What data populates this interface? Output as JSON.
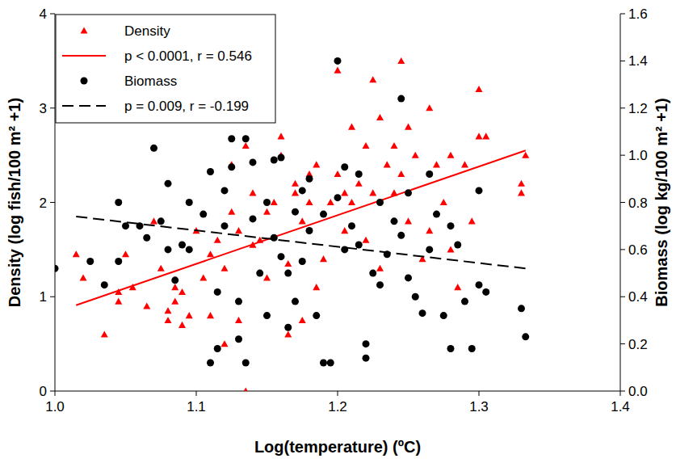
{
  "chart_data": {
    "type": "scatter",
    "x_label": "Log(temperature) (ºC)",
    "y_label": "Density (log fish/100 m² +1)",
    "y2_label": "Biomass (log kg/100 m² +1)",
    "xlim": [
      1.0,
      1.4
    ],
    "xticks": [
      {
        "value": 1.0,
        "label": "1.0"
      },
      1.1,
      1.2,
      1.3,
      {
        "value": 1.4,
        "label": "1.4"
      }
    ],
    "ylim": [
      0,
      4
    ],
    "yticks": [
      0,
      1,
      2,
      3,
      4
    ],
    "y2lim": [
      0,
      1.6
    ],
    "y2ticks": [
      {
        "value": 0,
        "label": "0.0"
      },
      0.2,
      0.4,
      0.6,
      0.8,
      {
        "value": 1.0,
        "label": "1.0"
      },
      1.2,
      1.4,
      1.6
    ],
    "legend": "upper left",
    "grid": false,
    "series": [
      {
        "name": "Density",
        "type": "scatter",
        "marker": "triangle",
        "color": "#ff0000",
        "x": [
          1.015,
          1.02,
          1.035,
          1.045,
          1.045,
          1.05,
          1.055,
          1.065,
          1.07,
          1.075,
          1.08,
          1.08,
          1.085,
          1.085,
          1.09,
          1.09,
          1.095,
          1.1,
          1.105,
          1.11,
          1.11,
          1.115,
          1.12,
          1.12,
          1.125,
          1.125,
          1.13,
          1.13,
          1.135,
          1.135,
          1.14,
          1.14,
          1.145,
          1.15,
          1.15,
          1.155,
          1.16,
          1.16,
          1.165,
          1.165,
          1.17,
          1.17,
          1.175,
          1.175,
          1.18,
          1.18,
          1.185,
          1.185,
          1.19,
          1.195,
          1.2,
          1.2,
          1.205,
          1.205,
          1.21,
          1.21,
          1.215,
          1.22,
          1.22,
          1.225,
          1.225,
          1.23,
          1.23,
          1.235,
          1.24,
          1.24,
          1.245,
          1.245,
          1.25,
          1.25,
          1.255,
          1.26,
          1.265,
          1.265,
          1.27,
          1.275,
          1.28,
          1.28,
          1.285,
          1.29,
          1.295,
          1.3,
          1.3,
          1.305,
          1.33,
          1.33,
          1.333
        ],
        "values": [
          1.45,
          1.2,
          0.6,
          0.95,
          1.05,
          1.45,
          1.1,
          0.9,
          1.8,
          1.3,
          0.85,
          0.75,
          0.95,
          1.1,
          1.05,
          0.7,
          0.8,
          1.7,
          1.2,
          1.45,
          0.8,
          1.6,
          1.3,
          0.5,
          1.9,
          2.4,
          1.7,
          0.75,
          2.6,
          0.0,
          1.55,
          2.1,
          1.6,
          1.2,
          1.9,
          2.0,
          2.7,
          2.5,
          0.6,
          1.35,
          2.1,
          2.2,
          0.75,
          1.8,
          2.0,
          2.3,
          1.1,
          2.4,
          1.4,
          2.0,
          3.4,
          2.3,
          1.7,
          2.1,
          2.8,
          2.0,
          2.2,
          2.6,
          1.6,
          3.3,
          2.1,
          2.9,
          1.3,
          2.4,
          2.1,
          2.6,
          3.5,
          2.3,
          1.8,
          2.8,
          2.5,
          1.4,
          3.0,
          1.7,
          2.4,
          2.0,
          2.5,
          1.5,
          1.1,
          2.4,
          1.8,
          3.2,
          2.7,
          2.7,
          2.1,
          2.2,
          2.5
        ]
      },
      {
        "name": "p < 0.0001, r = 0.546",
        "type": "line",
        "line_style": "solid",
        "color": "#ff0000",
        "x": [
          1.015,
          1.333
        ],
        "values": [
          0.91,
          2.55
        ]
      },
      {
        "name": "Biomass",
        "type": "scatter",
        "marker": "circle",
        "color": "#000000",
        "axis": "y2",
        "x": [
          1.0,
          1.025,
          1.035,
          1.045,
          1.045,
          1.05,
          1.06,
          1.065,
          1.07,
          1.075,
          1.08,
          1.08,
          1.085,
          1.09,
          1.095,
          1.095,
          1.105,
          1.11,
          1.11,
          1.115,
          1.115,
          1.12,
          1.12,
          1.125,
          1.125,
          1.13,
          1.13,
          1.135,
          1.135,
          1.14,
          1.14,
          1.145,
          1.15,
          1.15,
          1.155,
          1.155,
          1.16,
          1.16,
          1.165,
          1.165,
          1.17,
          1.17,
          1.175,
          1.175,
          1.18,
          1.18,
          1.185,
          1.19,
          1.19,
          1.195,
          1.2,
          1.2,
          1.205,
          1.205,
          1.21,
          1.215,
          1.215,
          1.22,
          1.22,
          1.225,
          1.23,
          1.23,
          1.235,
          1.24,
          1.245,
          1.245,
          1.25,
          1.25,
          1.255,
          1.26,
          1.265,
          1.265,
          1.27,
          1.275,
          1.28,
          1.28,
          1.285,
          1.29,
          1.295,
          1.3,
          1.3,
          1.305,
          1.33,
          1.333
        ],
        "values": [
          0.52,
          0.55,
          0.45,
          0.8,
          0.55,
          0.7,
          0.7,
          0.65,
          1.03,
          0.72,
          0.6,
          0.88,
          0.47,
          0.62,
          0.8,
          0.6,
          0.75,
          0.12,
          0.93,
          0.18,
          0.42,
          0.85,
          0.7,
          1.07,
          0.95,
          0.38,
          0.22,
          1.07,
          0.12,
          0.97,
          0.73,
          0.5,
          0.8,
          0.32,
          0.98,
          0.65,
          0.57,
          0.99,
          0.5,
          0.27,
          0.76,
          0.38,
          0.85,
          0.55,
          0.9,
          0.68,
          0.32,
          0.12,
          0.75,
          0.12,
          1.4,
          0.82,
          0.6,
          0.95,
          0.7,
          0.62,
          0.92,
          0.2,
          0.14,
          0.5,
          0.8,
          0.45,
          0.58,
          0.72,
          1.24,
          0.66,
          0.84,
          0.48,
          0.4,
          0.33,
          0.92,
          0.6,
          0.75,
          0.32,
          0.7,
          0.18,
          0.62,
          0.38,
          0.18,
          0.85,
          0.45,
          0.42,
          0.35,
          0.23
        ]
      },
      {
        "name": "p = 0.009, r = -0.199",
        "type": "line",
        "line_style": "dashed",
        "color": "#000000",
        "axis": "y2",
        "x": [
          1.015,
          1.333
        ],
        "values": [
          0.74,
          0.52
        ]
      }
    ]
  }
}
